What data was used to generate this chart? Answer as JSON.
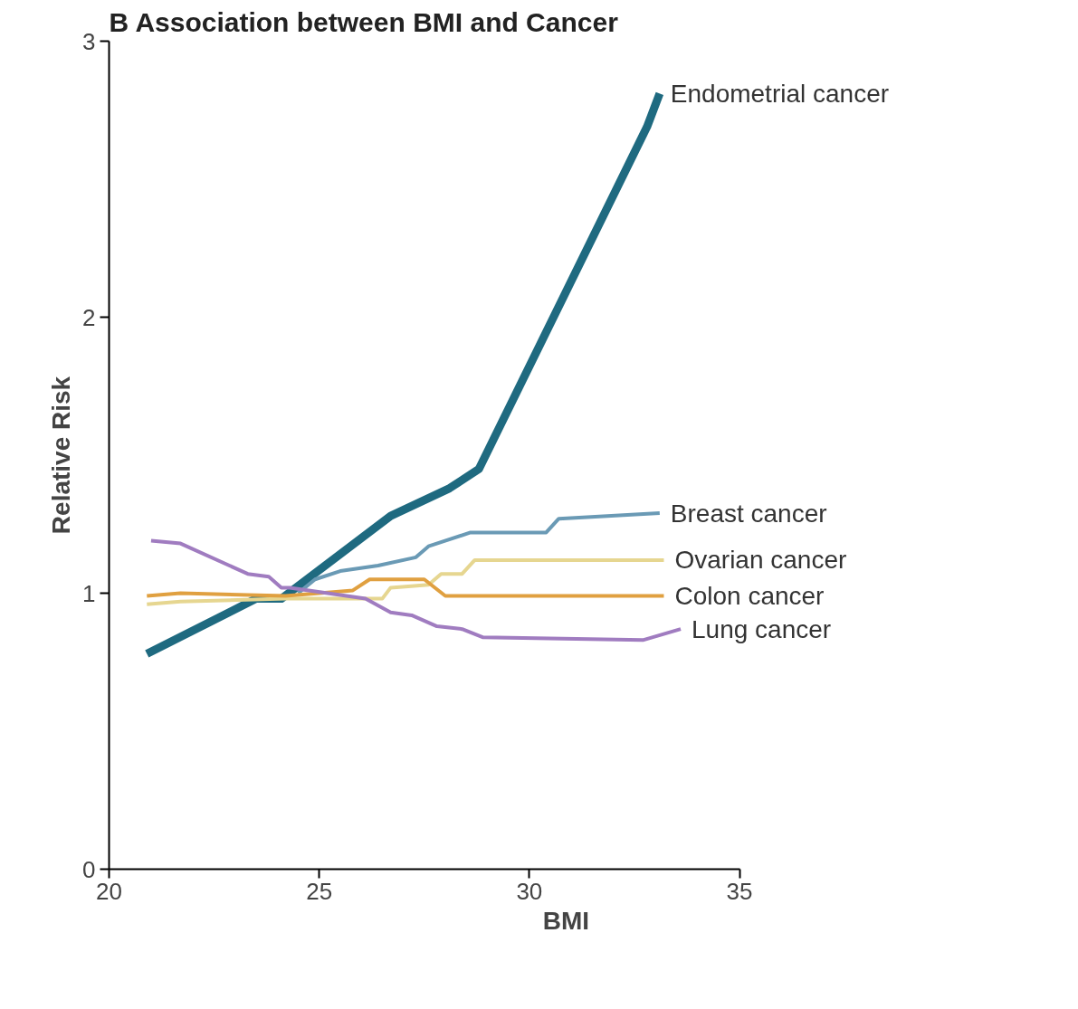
{
  "chart_data": {
    "type": "line",
    "title": "B  Association between BMI and Cancer",
    "xlabel": "BMI",
    "ylabel": "Relative Risk",
    "xlim": [
      20,
      35
    ],
    "xticks": [
      20,
      25,
      30,
      35
    ],
    "ylim": [
      0,
      3
    ],
    "yticks": [
      0,
      1,
      2,
      3
    ],
    "grid": false,
    "legend": false,
    "marker": "none",
    "line_style": "solid",
    "series": [
      {
        "name": "Endometrial cancer",
        "color": "#1f6a80",
        "x": [
          20.9,
          23.5,
          24.1,
          26.7,
          28.1,
          28.8,
          32.8,
          33.1
        ],
        "values": [
          0.78,
          0.98,
          0.98,
          1.28,
          1.38,
          1.45,
          2.69,
          2.81
        ]
      },
      {
        "name": "Breast cancer",
        "color": "#6a9ab5",
        "x": [
          24.5,
          24.9,
          25.5,
          26.4,
          27.3,
          27.6,
          28.6,
          30.4,
          30.7,
          33.1
        ],
        "values": [
          1.0,
          1.05,
          1.08,
          1.1,
          1.13,
          1.17,
          1.22,
          1.22,
          1.27,
          1.29
        ]
      },
      {
        "name": "Ovarian cancer",
        "color": "#e6d690",
        "x": [
          20.9,
          21.7,
          24.2,
          26.1,
          26.5,
          26.7,
          27.6,
          27.9,
          28.4,
          28.7,
          33.2
        ],
        "values": [
          0.96,
          0.97,
          0.98,
          0.98,
          0.98,
          1.02,
          1.03,
          1.07,
          1.07,
          1.12,
          1.12
        ]
      },
      {
        "name": "Colon cancer",
        "color": "#e0a040",
        "x": [
          20.9,
          21.7,
          24.2,
          25.8,
          26.2,
          27.5,
          28.0,
          33.2
        ],
        "values": [
          0.99,
          1.0,
          0.99,
          1.01,
          1.05,
          1.05,
          0.99,
          0.99
        ]
      },
      {
        "name": "Lung cancer",
        "color": "#a07cc0",
        "x": [
          21.0,
          21.7,
          23.3,
          23.8,
          24.1,
          24.3,
          26.1,
          26.7,
          27.2,
          27.8,
          28.4,
          28.9,
          32.7,
          33.6
        ],
        "values": [
          1.19,
          1.18,
          1.07,
          1.06,
          1.02,
          1.02,
          0.98,
          0.93,
          0.92,
          0.88,
          0.87,
          0.84,
          0.83,
          0.87
        ]
      }
    ]
  }
}
